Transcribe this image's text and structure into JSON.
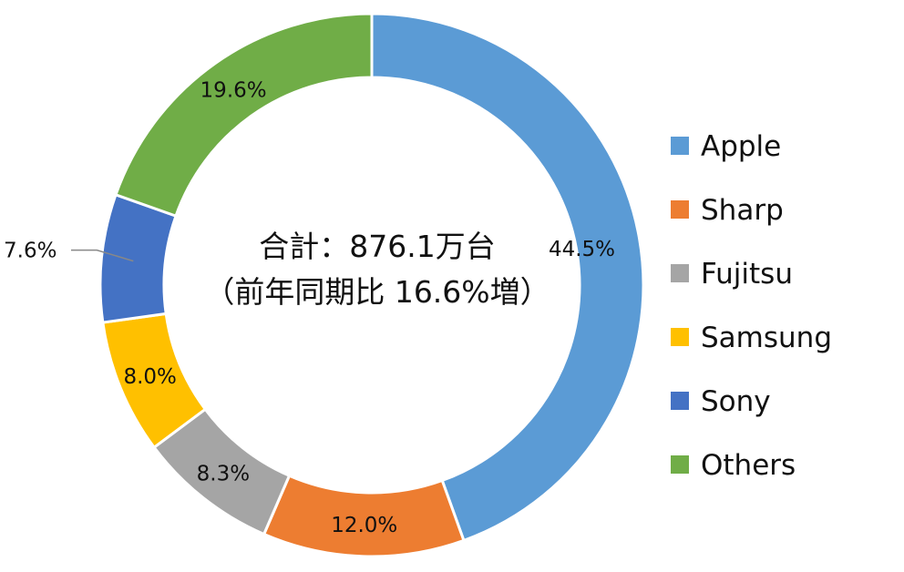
{
  "chart_data": {
    "type": "pie",
    "variant": "donut",
    "title": "",
    "center_text": [
      "合計：876.1万台",
      "（前年同期比 16.6%増）"
    ],
    "slices": [
      {
        "name": "Apple",
        "value": 44.5,
        "label": "44.5%",
        "color": "#5b9bd5"
      },
      {
        "name": "Sharp",
        "value": 12.0,
        "label": "12.0%",
        "color": "#ed7d31"
      },
      {
        "name": "Fujitsu",
        "value": 8.3,
        "label": "8.3%",
        "color": "#a5a5a5"
      },
      {
        "name": "Samsung",
        "value": 8.0,
        "label": "8.0%",
        "color": "#ffc000"
      },
      {
        "name": "Sony",
        "value": 7.6,
        "label": "7.6%",
        "color": "#4472c4"
      },
      {
        "name": "Others",
        "value": 19.6,
        "label": "19.6%",
        "color": "#70ad47"
      }
    ],
    "legend": {
      "position": "right"
    }
  }
}
